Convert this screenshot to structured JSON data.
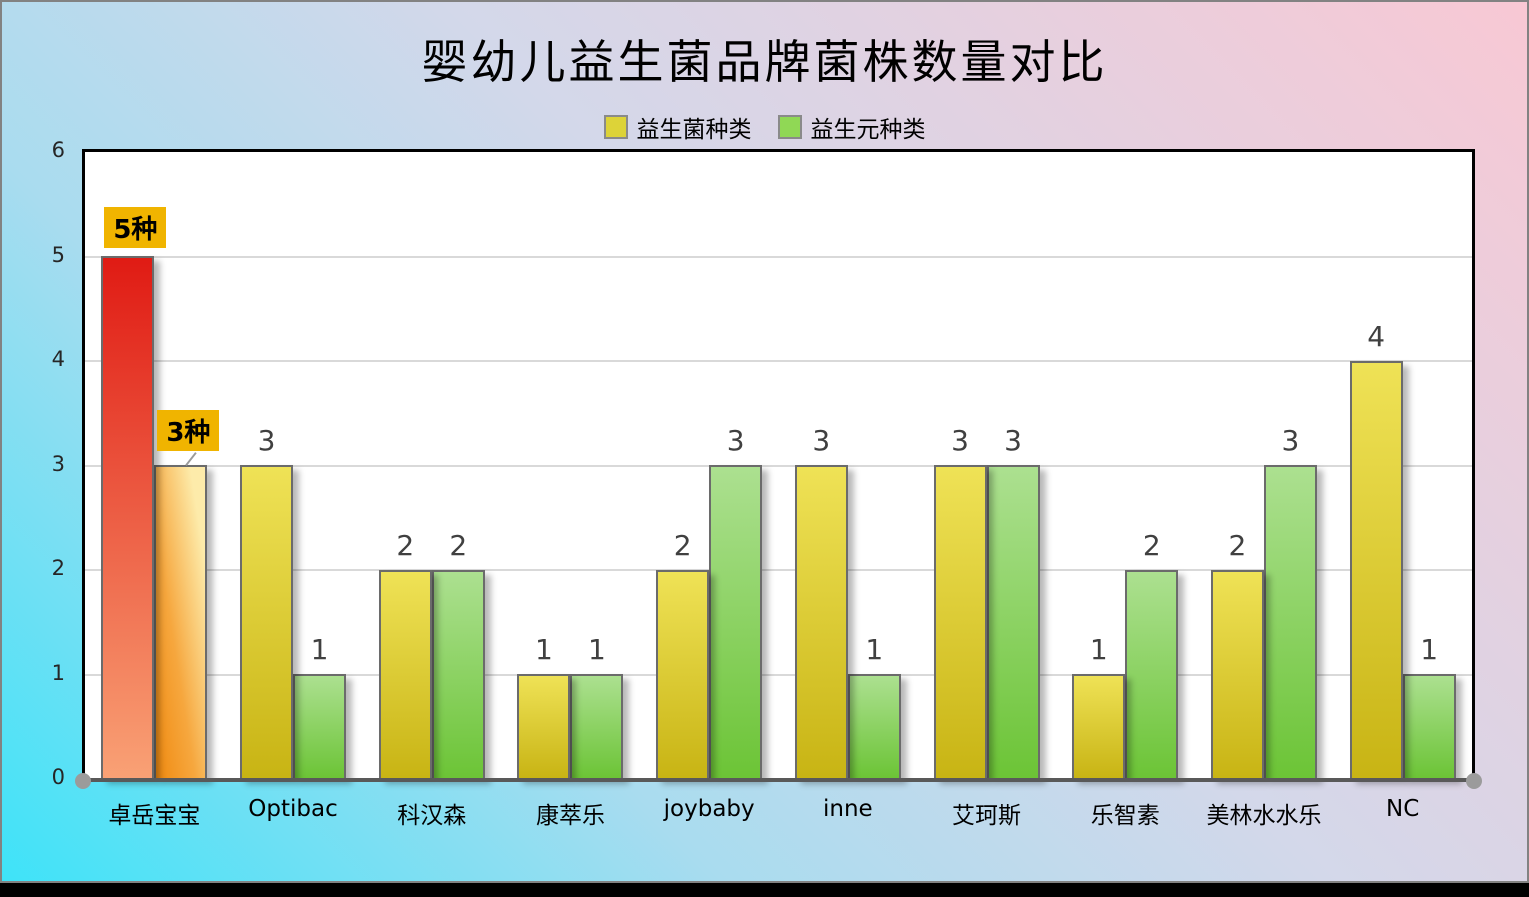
{
  "chart_data": {
    "type": "bar",
    "title": "婴幼儿益生菌品牌菌株数量对比",
    "categories": [
      "卓岳宝宝",
      "Optibac",
      "科汉森",
      "康萃乐",
      "joybaby",
      "inne",
      "艾珂斯",
      "乐智素",
      "美林水水乐",
      "NC"
    ],
    "series": [
      {
        "name": "益生菌种类",
        "values": [
          5,
          3,
          2,
          1,
          2,
          3,
          3,
          1,
          2,
          4
        ]
      },
      {
        "name": "益生元种类",
        "values": [
          3,
          1,
          2,
          1,
          3,
          1,
          3,
          2,
          3,
          1
        ]
      }
    ],
    "highlight": {
      "category": "卓岳宝宝",
      "badge_labels": [
        "5种",
        "3种"
      ]
    },
    "ylim": [
      0,
      6
    ],
    "yticks": [
      0,
      1,
      2,
      3,
      4,
      5,
      6
    ],
    "grid": true,
    "legend_position": "top"
  },
  "colors": {
    "legend_yellow": "#DDD338",
    "legend_green": "#90D855",
    "bar_yellow_top": "#EFE256",
    "bar_yellow_bottom": "#C8B414",
    "bar_green_top": "#ACE090",
    "bar_green_bottom": "#6CC436",
    "bar_red_top": "#E01B14",
    "bar_red_bottom": "#F9A175",
    "bar_orange_deep": "#F08A10",
    "bar_orange_mid": "#F6A73E",
    "bar_orange_light": "#FDEBAA",
    "badge_bg": "#F0B400",
    "bar_border": "#6B6B6B",
    "axis_line": "#595959",
    "grid_line": "#D9D9D9",
    "value_label": "#404040",
    "bg_cyan": "#3EE3F8",
    "bg_pink": "#F8C8D4"
  }
}
